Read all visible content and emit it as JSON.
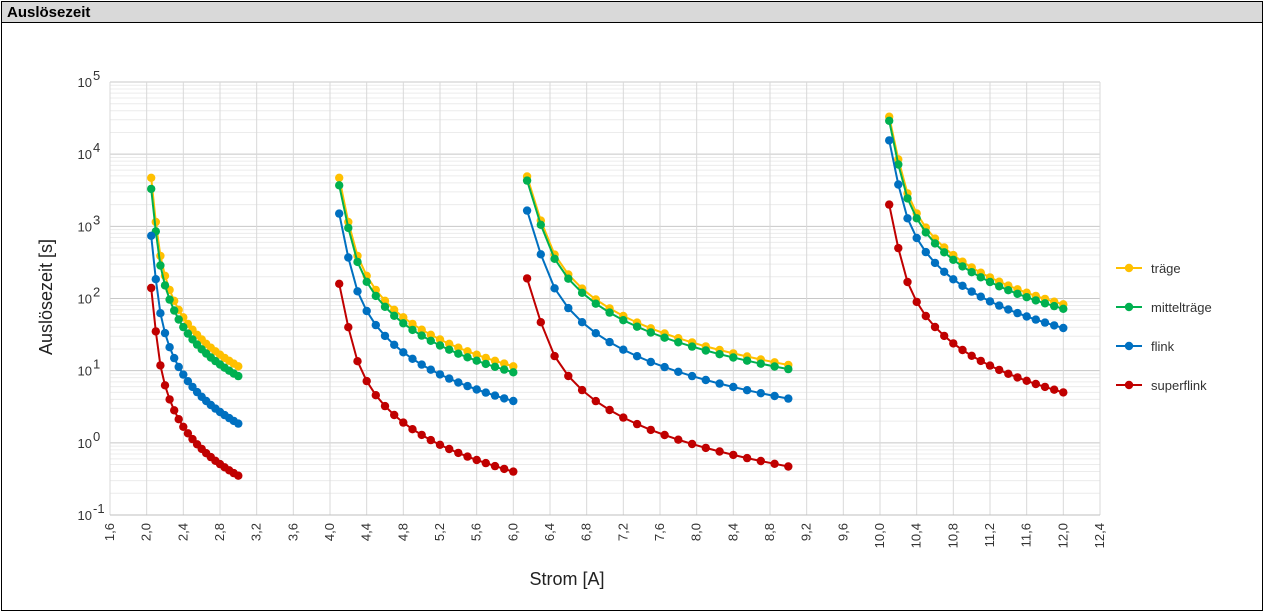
{
  "header": {
    "title": "Auslösezeit"
  },
  "chart_data": {
    "type": "line",
    "title": "",
    "xlabel": "Strom [A]",
    "ylabel": "Auslösezeit [s]",
    "xlim": [
      1.6,
      12.4
    ],
    "x_ticks": [
      "1,6",
      "2,0",
      "2,4",
      "2,8",
      "3,2",
      "3,6",
      "4,0",
      "4,4",
      "4,8",
      "5,2",
      "5,6",
      "6,0",
      "6,4",
      "6,8",
      "7,2",
      "7,6",
      "8,0",
      "8,4",
      "8,8",
      "9,2",
      "9,6",
      "10,0",
      "10,4",
      "10,8",
      "11,2",
      "11,6",
      "12,0",
      "12,4"
    ],
    "y_scale": "log",
    "ylim": [
      0.1,
      100000
    ],
    "y_ticks": [
      {
        "base": "10",
        "exp": "5"
      },
      {
        "base": "10",
        "exp": "4"
      },
      {
        "base": "10",
        "exp": "3"
      },
      {
        "base": "10",
        "exp": "2"
      },
      {
        "base": "10",
        "exp": "1"
      },
      {
        "base": "10",
        "exp": "0"
      },
      {
        "base": "10",
        "exp": "-1"
      }
    ],
    "grid": true,
    "legend_position": "right",
    "segments": [
      {
        "x_start": 2.05,
        "x_end": 3.0,
        "steps": 19
      },
      {
        "x_start": 4.1,
        "x_end": 6.0,
        "steps": 19
      },
      {
        "x_start": 6.15,
        "x_end": 9.0,
        "steps": 19
      },
      {
        "x_start": 10.1,
        "x_end": 12.0,
        "steps": 19
      }
    ],
    "series": [
      {
        "name": "träge",
        "color": "#ffc000",
        "segments": [
          {
            "start": 4700,
            "second": 1150,
            "end": 11.5
          },
          {
            "start": 4700,
            "second": 1150,
            "end": 11.5
          },
          {
            "start": 4900,
            "second": 1200,
            "end": 12
          },
          {
            "start": 33000,
            "second": 8500,
            "end": 83
          }
        ]
      },
      {
        "name": "mittelträge",
        "color": "#00b050",
        "segments": [
          {
            "start": 3300,
            "second": 850,
            "end": 8.4
          },
          {
            "start": 3700,
            "second": 950,
            "end": 9.5
          },
          {
            "start": 4300,
            "second": 1050,
            "end": 10.5
          },
          {
            "start": 29000,
            "second": 7200,
            "end": 72
          }
        ]
      },
      {
        "name": "flink",
        "color": "#0070c0",
        "segments": [
          {
            "start": 740,
            "second": 185,
            "end": 1.85
          },
          {
            "start": 1500,
            "second": 370,
            "end": 3.8
          },
          {
            "start": 1650,
            "second": 410,
            "end": 4.1
          },
          {
            "start": 15500,
            "second": 3800,
            "end": 39
          }
        ]
      },
      {
        "name": "superflink",
        "color": "#c00000",
        "segments": [
          {
            "start": 140,
            "second": 35,
            "end": 0.35
          },
          {
            "start": 160,
            "second": 40,
            "end": 0.4
          },
          {
            "start": 190,
            "second": 47,
            "end": 0.47
          },
          {
            "start": 2000,
            "second": 500,
            "end": 5
          }
        ]
      }
    ]
  }
}
